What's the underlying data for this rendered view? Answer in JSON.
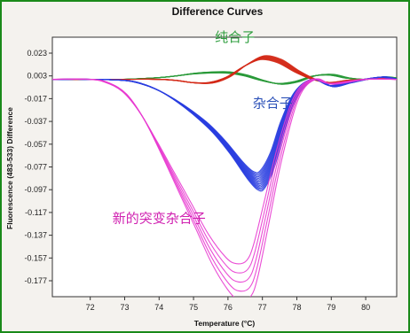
{
  "chart_data": {
    "type": "line",
    "title": "Difference Curves",
    "xlabel": "Temperature (°C)",
    "ylabel": "Fluorescence (483-533) Difference",
    "xlim": [
      70.9,
      80.9
    ],
    "ylim": [
      -0.191,
      0.037
    ],
    "x_ticks": [
      72,
      73,
      74,
      75,
      76,
      77,
      78,
      79,
      80
    ],
    "y_ticks": [
      0.023,
      0.003,
      -0.017,
      -0.037,
      -0.057,
      -0.077,
      -0.097,
      -0.117,
      -0.137,
      -0.157,
      -0.177
    ],
    "y_tick_labels": [
      "0.023",
      "0.003",
      "-0.017",
      "-0.037",
      "-0.057",
      "-0.077",
      "-0.097",
      "-0.117",
      "-0.137",
      "-0.157",
      "-0.177"
    ],
    "grid": false,
    "annotations": [
      {
        "text": "纯合子",
        "color": "#2e9e3e",
        "x": 76.2,
        "y": 0.033
      },
      {
        "text": "杂合子",
        "color": "#2d52b8",
        "x": 77.3,
        "y": -0.025
      },
      {
        "text": "新的突变杂合子",
        "color": "#d020b0",
        "x": 74.0,
        "y": -0.126
      }
    ],
    "series": [
      {
        "group": "homozygote-green",
        "color": "#2a9a3a",
        "count": 10,
        "x": [
          70.9,
          72,
          73,
          74,
          74.5,
          75,
          75.5,
          76,
          76.5,
          77,
          77.5,
          78,
          78.5,
          79,
          79.5,
          80,
          80.5,
          80.9
        ],
        "values": [
          0.0,
          0.0,
          0.0,
          0.0015,
          0.003,
          0.005,
          0.006,
          0.006,
          0.0035,
          -0.001,
          -0.004,
          -0.002,
          0.003,
          0.004,
          0.001,
          0.0,
          0.002,
          0.001
        ]
      },
      {
        "group": "homozygote-red",
        "color": "#d42a18",
        "count": 10,
        "x": [
          70.9,
          72,
          73,
          74,
          74.5,
          75,
          75.5,
          76,
          76.5,
          77,
          77.5,
          78,
          78.5,
          79,
          79.5,
          80,
          80.5,
          80.9
        ],
        "values": [
          0.0,
          0.0,
          0.0,
          0.0,
          -0.001,
          -0.003,
          -0.003,
          0.002,
          0.012,
          0.019,
          0.016,
          0.007,
          0.0,
          -0.003,
          -0.001,
          0.0,
          0.001,
          0.0
        ]
      },
      {
        "group": "heterozygote-blue",
        "color": "#2a3ee0",
        "count": 14,
        "x": [
          70.9,
          72,
          73,
          73.5,
          74,
          74.5,
          75,
          75.5,
          76,
          76.5,
          76.8,
          77.0,
          77.3,
          77.6,
          78,
          78.5,
          79,
          79.5,
          80,
          80.5,
          80.9
        ],
        "values": [
          0.0,
          0.0,
          -0.001,
          -0.004,
          -0.01,
          -0.019,
          -0.03,
          -0.043,
          -0.06,
          -0.08,
          -0.089,
          -0.088,
          -0.07,
          -0.04,
          -0.012,
          0.0,
          -0.006,
          -0.003,
          0.0,
          0.002,
          0.0
        ]
      },
      {
        "group": "new-mutant-heterozygote-magenta",
        "color": "#e83ad0",
        "count": 5,
        "x": [
          70.9,
          72,
          72.5,
          73,
          73.5,
          74,
          74.5,
          75,
          75.5,
          76,
          76.3,
          76.6,
          76.8,
          77.1,
          77.5,
          78,
          78.5,
          79,
          80,
          80.9
        ],
        "values": [
          0.0,
          0.0,
          -0.003,
          -0.012,
          -0.032,
          -0.06,
          -0.09,
          -0.12,
          -0.15,
          -0.172,
          -0.178,
          -0.175,
          -0.16,
          -0.12,
          -0.065,
          -0.015,
          0.0,
          -0.004,
          0.0,
          0.0
        ]
      }
    ]
  }
}
